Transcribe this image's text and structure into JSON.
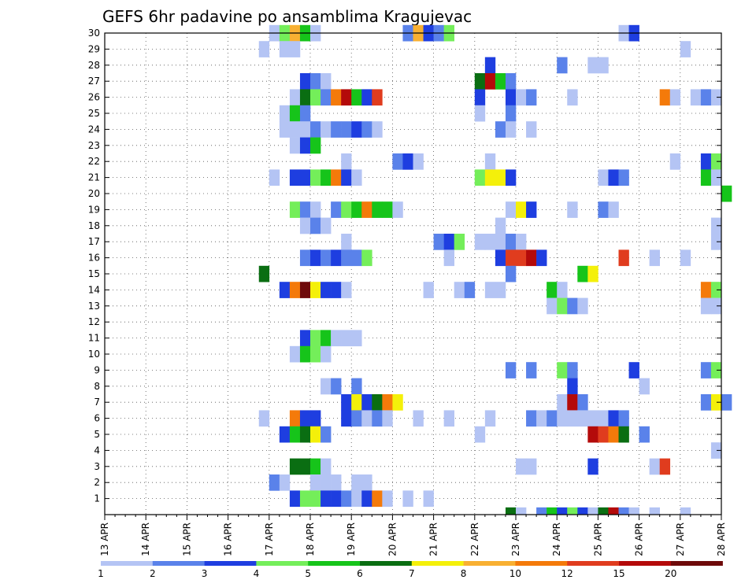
{
  "chart_data": {
    "type": "heatmap",
    "title": "GEFS 6hr padavine po ansamblima Kragujevac",
    "xlabel": "",
    "ylabel": "",
    "x_ticks": [
      "13 APR",
      "14 APR",
      "15 APR",
      "16 APR",
      "17 APR",
      "18 APR",
      "19 APR",
      "20 APR",
      "21 APR",
      "22 APR",
      "23 APR",
      "24 APR",
      "25 APR",
      "26 APR",
      "27 APR",
      "28 APR"
    ],
    "y_ticks": [
      "1",
      "2",
      "3",
      "4",
      "5",
      "6",
      "7",
      "8",
      "9",
      "10",
      "11",
      "12",
      "13",
      "14",
      "15",
      "16",
      "17",
      "18",
      "19",
      "20",
      "21",
      "22",
      "23",
      "24",
      "25",
      "26",
      "27",
      "28",
      "29",
      "30"
    ],
    "x_range": [
      "13 APR 00Z",
      "28 APR 00Z"
    ],
    "y_range": [
      0,
      30
    ],
    "time_step_hours": 6,
    "grid": true,
    "legend_placement": "bottom",
    "legend": {
      "labels": [
        "1",
        "2",
        "3",
        "4",
        "5",
        "6",
        "7",
        "8",
        "10",
        "12",
        "15",
        "20"
      ],
      "colors": [
        "#b4c4f4",
        "#5a82ea",
        "#1e3ee0",
        "#74ee5a",
        "#16c41a",
        "#0a6e12",
        "#f4f00a",
        "#f8b032",
        "#f47a0a",
        "#e03c1e",
        "#b40a0a",
        "#6e0a0a"
      ]
    },
    "cells": [
      [
        30,
        17.0,
        1
      ],
      [
        30,
        17.25,
        4
      ],
      [
        30,
        17.5,
        8
      ],
      [
        30,
        17.75,
        5
      ],
      [
        30,
        18.0,
        1
      ],
      [
        30,
        20.25,
        2
      ],
      [
        30,
        20.5,
        8
      ],
      [
        30,
        20.75,
        3
      ],
      [
        30,
        21.0,
        2
      ],
      [
        30,
        21.25,
        4
      ],
      [
        30,
        25.5,
        1
      ],
      [
        30,
        25.75,
        3
      ],
      [
        29,
        16.75,
        1
      ],
      [
        29,
        17.25,
        1
      ],
      [
        29,
        17.5,
        1
      ],
      [
        29,
        27.0,
        1
      ],
      [
        28,
        22.25,
        3
      ],
      [
        28,
        24.0,
        2
      ],
      [
        28,
        24.75,
        1
      ],
      [
        28,
        25.0,
        1
      ],
      [
        27,
        17.75,
        3
      ],
      [
        27,
        18.0,
        2
      ],
      [
        27,
        18.25,
        1
      ],
      [
        27,
        22.0,
        6
      ],
      [
        27,
        22.25,
        11
      ],
      [
        27,
        22.5,
        5
      ],
      [
        27,
        22.75,
        2
      ],
      [
        26,
        17.5,
        1
      ],
      [
        26,
        17.75,
        6
      ],
      [
        26,
        18.0,
        4
      ],
      [
        26,
        18.25,
        2
      ],
      [
        26,
        18.5,
        9
      ],
      [
        26,
        18.75,
        11
      ],
      [
        26,
        19.0,
        5
      ],
      [
        26,
        19.25,
        3
      ],
      [
        26,
        19.5,
        10
      ],
      [
        26,
        22.0,
        3
      ],
      [
        26,
        22.75,
        3
      ],
      [
        26,
        23.0,
        1
      ],
      [
        26,
        23.25,
        2
      ],
      [
        26,
        24.25,
        1
      ],
      [
        26,
        26.5,
        9
      ],
      [
        26,
        26.75,
        1
      ],
      [
        26,
        27.25,
        1
      ],
      [
        26,
        27.5,
        2
      ],
      [
        26,
        27.75,
        1
      ],
      [
        25,
        17.25,
        1
      ],
      [
        25,
        17.5,
        5
      ],
      [
        25,
        17.75,
        2
      ],
      [
        25,
        22.0,
        1
      ],
      [
        25,
        22.75,
        2
      ],
      [
        24,
        17.25,
        1
      ],
      [
        24,
        17.5,
        1
      ],
      [
        24,
        17.75,
        1
      ],
      [
        24,
        18.0,
        2
      ],
      [
        24,
        18.25,
        1
      ],
      [
        24,
        18.5,
        2
      ],
      [
        24,
        18.75,
        2
      ],
      [
        24,
        19.0,
        3
      ],
      [
        24,
        19.25,
        2
      ],
      [
        24,
        19.5,
        1
      ],
      [
        24,
        22.5,
        2
      ],
      [
        24,
        22.75,
        1
      ],
      [
        24,
        23.25,
        1
      ],
      [
        23,
        17.5,
        1
      ],
      [
        23,
        17.75,
        3
      ],
      [
        23,
        18.0,
        5
      ],
      [
        22,
        18.75,
        1
      ],
      [
        22,
        20.0,
        2
      ],
      [
        22,
        20.25,
        3
      ],
      [
        22,
        20.5,
        1
      ],
      [
        22,
        22.25,
        1
      ],
      [
        22,
        26.75,
        1
      ],
      [
        22,
        27.5,
        3
      ],
      [
        22,
        27.75,
        4
      ],
      [
        21,
        17.0,
        1
      ],
      [
        21,
        17.5,
        3
      ],
      [
        21,
        17.75,
        3
      ],
      [
        21,
        18.0,
        4
      ],
      [
        21,
        18.25,
        5
      ],
      [
        21,
        18.5,
        9
      ],
      [
        21,
        18.75,
        3
      ],
      [
        21,
        19.0,
        1
      ],
      [
        21,
        22.0,
        4
      ],
      [
        21,
        22.25,
        7
      ],
      [
        21,
        22.5,
        7
      ],
      [
        21,
        22.75,
        3
      ],
      [
        21,
        25.0,
        1
      ],
      [
        21,
        25.25,
        3
      ],
      [
        21,
        25.5,
        2
      ],
      [
        21,
        27.5,
        5
      ],
      [
        21,
        27.75,
        1
      ],
      [
        20,
        28.0,
        5
      ],
      [
        19,
        17.5,
        4
      ],
      [
        19,
        17.75,
        2
      ],
      [
        19,
        18.0,
        1
      ],
      [
        19,
        18.5,
        2
      ],
      [
        19,
        18.75,
        4
      ],
      [
        19,
        19.0,
        5
      ],
      [
        19,
        19.25,
        9
      ],
      [
        19,
        19.5,
        5
      ],
      [
        19,
        19.75,
        5
      ],
      [
        19,
        20.0,
        1
      ],
      [
        19,
        22.75,
        1
      ],
      [
        19,
        23.0,
        7
      ],
      [
        19,
        23.25,
        3
      ],
      [
        19,
        24.25,
        1
      ],
      [
        19,
        25.0,
        2
      ],
      [
        19,
        25.25,
        1
      ],
      [
        18,
        17.75,
        1
      ],
      [
        18,
        18.0,
        2
      ],
      [
        18,
        18.25,
        1
      ],
      [
        18,
        22.5,
        1
      ],
      [
        18,
        27.75,
        1
      ],
      [
        17,
        18.75,
        1
      ],
      [
        17,
        21.0,
        2
      ],
      [
        17,
        21.25,
        3
      ],
      [
        17,
        21.5,
        4
      ],
      [
        17,
        22.0,
        1
      ],
      [
        17,
        22.25,
        1
      ],
      [
        17,
        22.5,
        1
      ],
      [
        17,
        22.75,
        2
      ],
      [
        17,
        23.0,
        1
      ],
      [
        17,
        27.75,
        1
      ],
      [
        16,
        17.75,
        2
      ],
      [
        16,
        18.0,
        3
      ],
      [
        16,
        18.25,
        2
      ],
      [
        16,
        18.5,
        3
      ],
      [
        16,
        18.75,
        2
      ],
      [
        16,
        19.0,
        2
      ],
      [
        16,
        19.25,
        4
      ],
      [
        16,
        21.25,
        1
      ],
      [
        16,
        22.5,
        3
      ],
      [
        16,
        22.75,
        10
      ],
      [
        16,
        23.0,
        10
      ],
      [
        16,
        23.25,
        11
      ],
      [
        16,
        23.5,
        3
      ],
      [
        16,
        25.5,
        10
      ],
      [
        16,
        26.25,
        1
      ],
      [
        16,
        27.0,
        1
      ],
      [
        15,
        16.75,
        6
      ],
      [
        15,
        22.75,
        2
      ],
      [
        15,
        24.5,
        5
      ],
      [
        15,
        24.75,
        7
      ],
      [
        14,
        17.25,
        3
      ],
      [
        14,
        17.5,
        9
      ],
      [
        14,
        17.75,
        12
      ],
      [
        14,
        18.0,
        7
      ],
      [
        14,
        18.25,
        3
      ],
      [
        14,
        18.5,
        3
      ],
      [
        14,
        18.75,
        1
      ],
      [
        14,
        20.75,
        1
      ],
      [
        14,
        21.5,
        1
      ],
      [
        14,
        21.75,
        2
      ],
      [
        14,
        22.25,
        1
      ],
      [
        14,
        22.5,
        1
      ],
      [
        14,
        23.75,
        5
      ],
      [
        14,
        24.0,
        1
      ],
      [
        14,
        27.5,
        9
      ],
      [
        14,
        27.75,
        4
      ],
      [
        13,
        23.75,
        1
      ],
      [
        13,
        24.0,
        4
      ],
      [
        13,
        24.25,
        2
      ],
      [
        13,
        24.5,
        1
      ],
      [
        13,
        27.5,
        1
      ],
      [
        13,
        27.75,
        1
      ],
      [
        11,
        17.75,
        3
      ],
      [
        11,
        18.0,
        4
      ],
      [
        11,
        18.25,
        5
      ],
      [
        11,
        18.5,
        1
      ],
      [
        11,
        18.75,
        1
      ],
      [
        11,
        19.0,
        1
      ],
      [
        10,
        17.5,
        1
      ],
      [
        10,
        17.75,
        5
      ],
      [
        10,
        18.0,
        4
      ],
      [
        10,
        18.25,
        1
      ],
      [
        9,
        22.75,
        2
      ],
      [
        9,
        23.25,
        2
      ],
      [
        9,
        24.0,
        4
      ],
      [
        9,
        24.25,
        2
      ],
      [
        9,
        25.75,
        3
      ],
      [
        9,
        27.5,
        2
      ],
      [
        9,
        27.75,
        4
      ],
      [
        8,
        18.25,
        1
      ],
      [
        8,
        18.5,
        2
      ],
      [
        8,
        19.0,
        2
      ],
      [
        8,
        24.25,
        3
      ],
      [
        8,
        26.0,
        1
      ],
      [
        7,
        18.75,
        3
      ],
      [
        7,
        19.0,
        7
      ],
      [
        7,
        19.25,
        3
      ],
      [
        7,
        19.5,
        6
      ],
      [
        7,
        19.75,
        9
      ],
      [
        7,
        20.0,
        7
      ],
      [
        7,
        24.0,
        1
      ],
      [
        7,
        24.25,
        11
      ],
      [
        7,
        24.5,
        2
      ],
      [
        7,
        27.5,
        2
      ],
      [
        7,
        27.75,
        7
      ],
      [
        7,
        28.0,
        2
      ],
      [
        6,
        16.75,
        1
      ],
      [
        6,
        17.5,
        9
      ],
      [
        6,
        17.75,
        3
      ],
      [
        6,
        18.0,
        3
      ],
      [
        6,
        18.75,
        3
      ],
      [
        6,
        19.0,
        2
      ],
      [
        6,
        19.25,
        1
      ],
      [
        6,
        19.5,
        2
      ],
      [
        6,
        19.75,
        1
      ],
      [
        6,
        20.5,
        1
      ],
      [
        6,
        21.25,
        1
      ],
      [
        6,
        22.25,
        1
      ],
      [
        6,
        23.25,
        2
      ],
      [
        6,
        23.5,
        1
      ],
      [
        6,
        23.75,
        2
      ],
      [
        6,
        24.0,
        1
      ],
      [
        6,
        24.25,
        1
      ],
      [
        6,
        24.5,
        1
      ],
      [
        6,
        24.75,
        1
      ],
      [
        6,
        25.0,
        1
      ],
      [
        6,
        25.25,
        3
      ],
      [
        6,
        25.5,
        2
      ],
      [
        5,
        17.25,
        3
      ],
      [
        5,
        17.5,
        5
      ],
      [
        5,
        17.75,
        6
      ],
      [
        5,
        18.0,
        7
      ],
      [
        5,
        18.25,
        2
      ],
      [
        5,
        22.0,
        1
      ],
      [
        5,
        24.75,
        11
      ],
      [
        5,
        25.0,
        10
      ],
      [
        5,
        25.25,
        9
      ],
      [
        5,
        25.5,
        6
      ],
      [
        5,
        26.0,
        2
      ],
      [
        4,
        27.75,
        1
      ],
      [
        3,
        17.5,
        6
      ],
      [
        3,
        17.75,
        6
      ],
      [
        3,
        18.0,
        5
      ],
      [
        3,
        18.25,
        1
      ],
      [
        3,
        23.0,
        1
      ],
      [
        3,
        23.25,
        1
      ],
      [
        3,
        24.75,
        3
      ],
      [
        3,
        26.25,
        1
      ],
      [
        3,
        26.5,
        10
      ],
      [
        2,
        17.0,
        2
      ],
      [
        2,
        17.25,
        1
      ],
      [
        2,
        18.0,
        1
      ],
      [
        2,
        18.25,
        1
      ],
      [
        2,
        18.5,
        1
      ],
      [
        2,
        19.0,
        1
      ],
      [
        2,
        19.25,
        1
      ],
      [
        1,
        17.5,
        3
      ],
      [
        1,
        17.75,
        4
      ],
      [
        1,
        18.0,
        4
      ],
      [
        1,
        18.25,
        3
      ],
      [
        1,
        18.5,
        3
      ],
      [
        1,
        18.75,
        2
      ],
      [
        1,
        19.0,
        1
      ],
      [
        1,
        19.25,
        3
      ],
      [
        1,
        19.5,
        9
      ],
      [
        1,
        19.75,
        1
      ],
      [
        1,
        20.25,
        1
      ],
      [
        1,
        20.75,
        1
      ],
      [
        0,
        22.75,
        6
      ],
      [
        0,
        23.0,
        1
      ],
      [
        0,
        23.5,
        2
      ],
      [
        0,
        23.75,
        5
      ],
      [
        0,
        24.0,
        3
      ],
      [
        0,
        24.25,
        4
      ],
      [
        0,
        24.5,
        3
      ],
      [
        0,
        24.75,
        1
      ],
      [
        0,
        25.0,
        6
      ],
      [
        0,
        25.25,
        11
      ],
      [
        0,
        25.5,
        2
      ],
      [
        0,
        25.75,
        1
      ],
      [
        0,
        26.25,
        1
      ],
      [
        0,
        27.0,
        1
      ]
    ]
  }
}
